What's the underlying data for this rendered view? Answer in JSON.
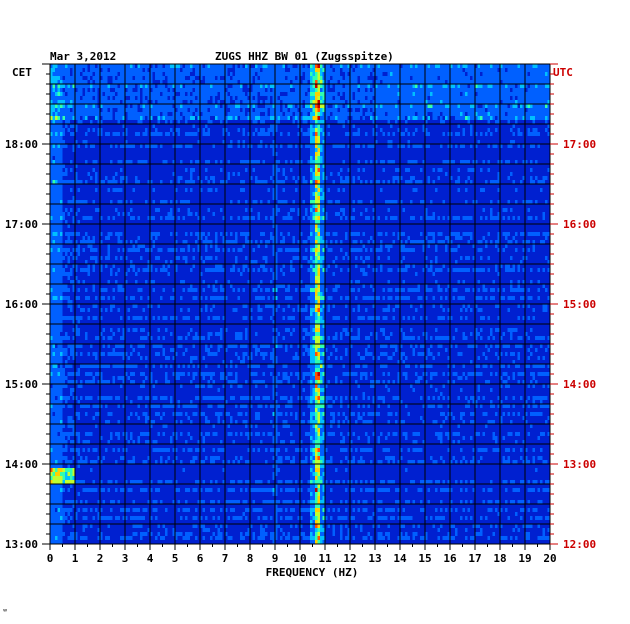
{
  "chart_data": {
    "type": "heatmap",
    "title": "ZUGS HHZ BW 01 (Zugsspitze)",
    "date": "Mar 3,2012",
    "xlabel": "FREQUENCY (HZ)",
    "x_ticks": [
      "0",
      "1",
      "2",
      "3",
      "4",
      "5",
      "6",
      "7",
      "8",
      "9",
      "10",
      "11",
      "12",
      "13",
      "14",
      "15",
      "16",
      "17",
      "18",
      "19",
      "20"
    ],
    "xlim": [
      0,
      20
    ],
    "left_axis": {
      "label": "CET",
      "ticks": [
        "18:00",
        "17:00",
        "16:00",
        "15:00",
        "14:00",
        "13:00"
      ],
      "tick_hours": [
        18,
        17,
        16,
        15,
        14,
        13
      ],
      "label_color": "#000000"
    },
    "right_axis": {
      "label": "UTC",
      "ticks": [
        "17:00",
        "16:00",
        "15:00",
        "14:00",
        "13:00",
        "12:00"
      ],
      "tick_hours": [
        18,
        17,
        16,
        15,
        14,
        13
      ],
      "label_color": "#cc0000"
    },
    "ylim_cet_hours": [
      13.0,
      19.0
    ],
    "colormap": [
      "#000080",
      "#0020d0",
      "#0060ff",
      "#00c0ff",
      "#30ffb0",
      "#c0ff30",
      "#ffd000",
      "#ff5000",
      "#c00000"
    ],
    "grid": true,
    "features": [
      {
        "type": "persistent_line",
        "freq_hz": 10.7
      },
      {
        "type": "broadband_activity",
        "cet_hours": [
          18.3,
          19.0
        ]
      },
      {
        "type": "low_frequency_event",
        "cet_hours": [
          13.75,
          13.95
        ],
        "freq_hz": [
          0,
          1
        ]
      }
    ]
  },
  "footer_mark": "ʷ"
}
